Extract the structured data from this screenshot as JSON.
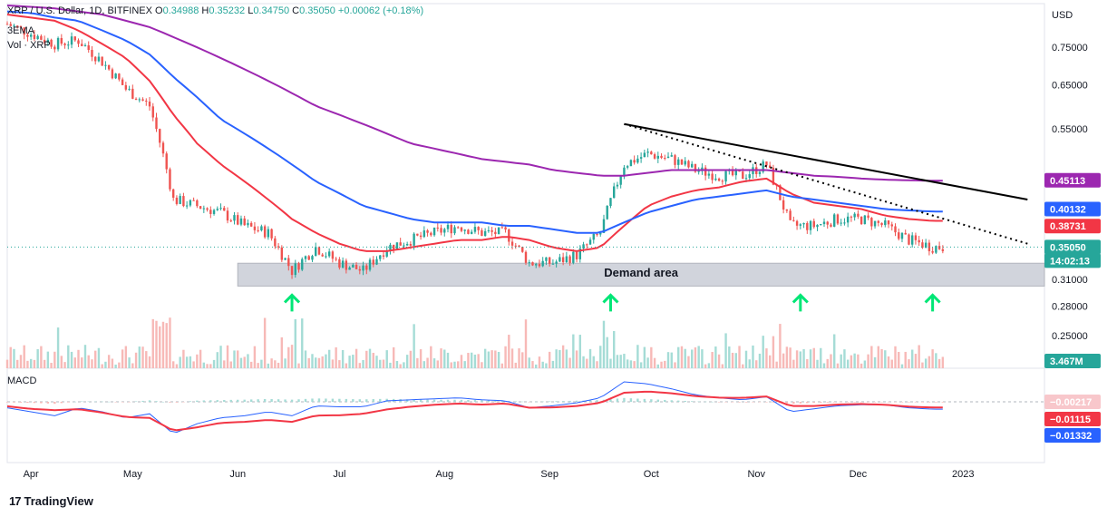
{
  "header": {
    "symbol_line": "XRP / U.S. Dollar, 1D, BITFINEX",
    "ohlc": [
      {
        "label": "O",
        "value": "0.34988"
      },
      {
        "label": "H",
        "value": "0.35232"
      },
      {
        "label": "L",
        "value": "0.34750"
      },
      {
        "label": "C",
        "value": "0.35050"
      }
    ],
    "change": "+0.00062 (+0.18%)",
    "indicator_1": "3EMA",
    "indicator_2": "Vol · XRP"
  },
  "price_axis": {
    "currency": "USD",
    "ticks": [
      "0.75000",
      "0.65000",
      "0.55000",
      "0.45113",
      "0.40132",
      "0.38731",
      "0.35050",
      "0.31000",
      "0.28000",
      "0.25000"
    ]
  },
  "price_tags": {
    "ema200": {
      "value": "0.45113",
      "color": "#9c27b0"
    },
    "ema100": {
      "value": "0.40132",
      "color": "#2962ff"
    },
    "ema50": {
      "value": "0.38731",
      "color": "#f23645"
    },
    "last": {
      "value": "0.35050",
      "color": "#26a69a"
    },
    "countdown": {
      "value": "14:02:13",
      "color": "#26a69a"
    },
    "volume": {
      "value": "3.467M",
      "color": "#26a69a"
    }
  },
  "macd": {
    "label": "MACD",
    "hist": {
      "value": "−0.00217",
      "color": "#f8c7cb"
    },
    "signal": {
      "value": "−0.01115",
      "color": "#f23645"
    },
    "macd": {
      "value": "−0.01332",
      "color": "#2962ff"
    }
  },
  "annotation": {
    "demand_area": "Demand area"
  },
  "time_axis": [
    "Apr",
    "May",
    "Jun",
    "Jul",
    "Aug",
    "Sep",
    "Oct",
    "Nov",
    "Dec",
    "2023"
  ],
  "footer": {
    "brand": "TradingView"
  },
  "colors": {
    "up": "#26a69a",
    "down": "#ef5350",
    "ema50": "#f23645",
    "ema100": "#2962ff",
    "ema200": "#9c27b0",
    "arrow": "#00e676"
  },
  "chart_data": {
    "type": "candlestick",
    "title": "XRP / U.S. Dollar, 1D, BITFINEX",
    "ylabel": "USD",
    "x": [
      "2022-03-25",
      "2022-04-01",
      "2022-04-08",
      "2022-04-15",
      "2022-04-22",
      "2022-04-29",
      "2022-05-06",
      "2022-05-13",
      "2022-05-20",
      "2022-05-27",
      "2022-06-03",
      "2022-06-10",
      "2022-06-17",
      "2022-06-24",
      "2022-07-01",
      "2022-07-08",
      "2022-07-15",
      "2022-07-22",
      "2022-07-29",
      "2022-08-05",
      "2022-08-12",
      "2022-08-19",
      "2022-08-26",
      "2022-09-02",
      "2022-09-09",
      "2022-09-16",
      "2022-09-23",
      "2022-09-30",
      "2022-10-07",
      "2022-10-14",
      "2022-10-21",
      "2022-10-28",
      "2022-11-04",
      "2022-11-11",
      "2022-11-18",
      "2022-11-25",
      "2022-12-02",
      "2022-12-09",
      "2022-12-16",
      "2022-12-23"
    ],
    "series": [
      {
        "name": "close",
        "values": [
          0.82,
          0.79,
          0.76,
          0.77,
          0.71,
          0.64,
          0.6,
          0.42,
          0.41,
          0.4,
          0.38,
          0.37,
          0.32,
          0.35,
          0.33,
          0.32,
          0.35,
          0.36,
          0.37,
          0.38,
          0.37,
          0.37,
          0.33,
          0.33,
          0.34,
          0.37,
          0.48,
          0.5,
          0.49,
          0.47,
          0.46,
          0.46,
          0.48,
          0.38,
          0.38,
          0.39,
          0.39,
          0.38,
          0.36,
          0.3505
        ]
      },
      {
        "name": "3EMA 50",
        "values": [
          0.85,
          0.84,
          0.83,
          0.8,
          0.76,
          0.72,
          0.66,
          0.58,
          0.52,
          0.48,
          0.45,
          0.42,
          0.39,
          0.37,
          0.355,
          0.345,
          0.345,
          0.35,
          0.355,
          0.36,
          0.36,
          0.365,
          0.36,
          0.35,
          0.345,
          0.35,
          0.38,
          0.41,
          0.425,
          0.435,
          0.44,
          0.45,
          0.455,
          0.43,
          0.415,
          0.41,
          0.405,
          0.395,
          0.39,
          0.38731
        ]
      },
      {
        "name": "3EMA 100",
        "values": [
          0.86,
          0.855,
          0.84,
          0.83,
          0.8,
          0.77,
          0.73,
          0.67,
          0.62,
          0.57,
          0.54,
          0.51,
          0.48,
          0.45,
          0.43,
          0.41,
          0.4,
          0.39,
          0.385,
          0.385,
          0.385,
          0.38,
          0.38,
          0.375,
          0.37,
          0.37,
          0.385,
          0.4,
          0.41,
          0.42,
          0.425,
          0.43,
          0.435,
          0.425,
          0.42,
          0.415,
          0.41,
          0.405,
          0.403,
          0.40132
        ]
      },
      {
        "name": "3EMA 200",
        "values": [
          0.88,
          0.875,
          0.87,
          0.86,
          0.85,
          0.83,
          0.81,
          0.78,
          0.75,
          0.72,
          0.69,
          0.66,
          0.63,
          0.6,
          0.58,
          0.56,
          0.54,
          0.52,
          0.51,
          0.5,
          0.49,
          0.485,
          0.48,
          0.47,
          0.465,
          0.46,
          0.46,
          0.465,
          0.47,
          0.47,
          0.47,
          0.47,
          0.47,
          0.465,
          0.46,
          0.458,
          0.455,
          0.453,
          0.452,
          0.45113
        ]
      }
    ],
    "demand_zone": [
      0.3,
      0.325
    ],
    "trendline_solid": {
      "from": [
        "2022-09-23",
        0.56
      ],
      "to": [
        "2023-01-20",
        0.42
      ]
    },
    "trendline_dotted": {
      "from": [
        "2022-09-23",
        0.56
      ],
      "to": [
        "2023-01-20",
        0.355
      ]
    },
    "support_bounces": [
      "2022-06-17",
      "2022-09-19",
      "2022-11-14",
      "2022-12-23"
    ]
  }
}
